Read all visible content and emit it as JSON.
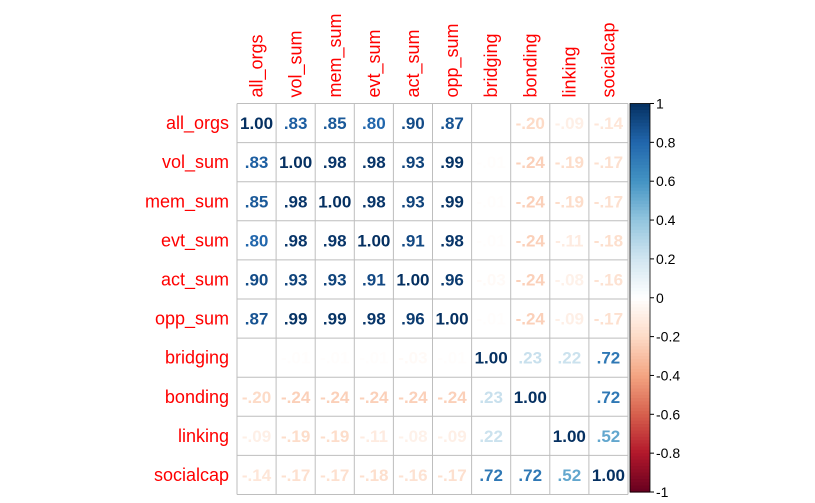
{
  "chart_data": {
    "type": "heatmap",
    "subtype": "correlation-matrix",
    "variables": [
      "all_orgs",
      "vol_sum",
      "mem_sum",
      "evt_sum",
      "act_sum",
      "opp_sum",
      "bridging",
      "bonding",
      "linking",
      "socialcap"
    ],
    "values": [
      [
        1.0,
        0.83,
        0.85,
        0.8,
        0.9,
        0.87,
        0.0,
        -0.2,
        -0.09,
        -0.14
      ],
      [
        0.83,
        1.0,
        0.98,
        0.98,
        0.93,
        0.99,
        -0.01,
        -0.24,
        -0.19,
        -0.17
      ],
      [
        0.85,
        0.98,
        1.0,
        0.98,
        0.93,
        0.99,
        -0.01,
        -0.24,
        -0.19,
        -0.17
      ],
      [
        0.8,
        0.98,
        0.98,
        1.0,
        0.91,
        0.98,
        -0.01,
        -0.24,
        -0.11,
        -0.18
      ],
      [
        0.9,
        0.93,
        0.93,
        0.91,
        1.0,
        0.96,
        -0.03,
        -0.24,
        -0.08,
        -0.16
      ],
      [
        0.87,
        0.99,
        0.99,
        0.98,
        0.96,
        1.0,
        -0.01,
        -0.24,
        -0.09,
        -0.17
      ],
      [
        0.0,
        -0.01,
        -0.01,
        -0.01,
        -0.03,
        -0.01,
        1.0,
        0.23,
        0.22,
        0.72
      ],
      [
        -0.2,
        -0.24,
        -0.24,
        -0.24,
        -0.24,
        -0.24,
        0.23,
        1.0,
        0.0,
        0.72
      ],
      [
        -0.09,
        -0.19,
        -0.19,
        -0.11,
        -0.08,
        -0.09,
        0.22,
        0.0,
        1.0,
        0.52
      ],
      [
        -0.14,
        -0.17,
        -0.17,
        -0.18,
        -0.16,
        -0.17,
        0.72,
        0.72,
        0.52,
        1.0
      ]
    ],
    "color_scale": {
      "range": [
        -1,
        1
      ],
      "ticks": [
        "1",
        "0.8",
        "0.6",
        "0.4",
        "0.2",
        "0",
        "-0.2",
        "-0.4",
        "-0.6",
        "-0.8",
        "-1"
      ],
      "colors": {
        "negative_strong": "#67001f",
        "negative_mid": "#d6604d",
        "neutral": "#ffffff",
        "positive_mid": "#4393c3",
        "positive_strong": "#053061"
      }
    },
    "legend_placement": "right",
    "grid": true,
    "label_color": "#ff0000"
  }
}
